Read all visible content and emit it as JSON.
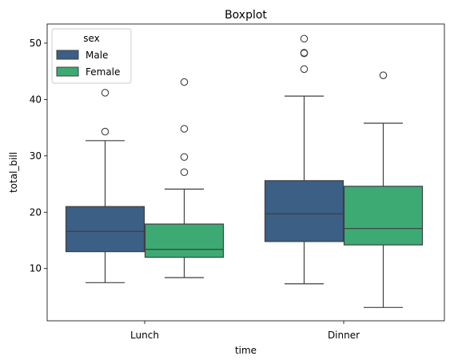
{
  "chart_data": {
    "type": "boxplot",
    "title": "Boxplot",
    "xlabel": "time",
    "ylabel": "total_bill",
    "categories": [
      "Lunch",
      "Dinner"
    ],
    "ylim": [
      0.73,
      53.4
    ],
    "yticks": [
      10,
      20,
      30,
      40,
      50
    ],
    "grid": false,
    "legend": {
      "title": "sex",
      "position": "top-left"
    },
    "series": [
      {
        "name": "Male",
        "color": "#3b5f85",
        "boxes": [
          {
            "category": "Lunch",
            "whisker_low": 7.5,
            "q1": 13.0,
            "median": 16.6,
            "q3": 21.0,
            "whisker_high": 32.7,
            "outliers": [
              34.3,
              41.2
            ]
          },
          {
            "category": "Dinner",
            "whisker_low": 7.3,
            "q1": 14.8,
            "median": 19.7,
            "q3": 25.6,
            "whisker_high": 40.6,
            "outliers": [
              45.4,
              48.2,
              48.3,
              50.8
            ]
          }
        ]
      },
      {
        "name": "Female",
        "color": "#3daa74",
        "boxes": [
          {
            "category": "Lunch",
            "whisker_low": 8.4,
            "q1": 12.0,
            "median": 13.4,
            "q3": 17.9,
            "whisker_high": 24.1,
            "outliers": [
              27.1,
              29.8,
              34.8,
              43.1
            ]
          },
          {
            "category": "Dinner",
            "whisker_low": 3.1,
            "q1": 14.2,
            "median": 17.1,
            "q3": 24.6,
            "whisker_high": 35.8,
            "outliers": [
              44.3
            ]
          }
        ]
      }
    ]
  }
}
